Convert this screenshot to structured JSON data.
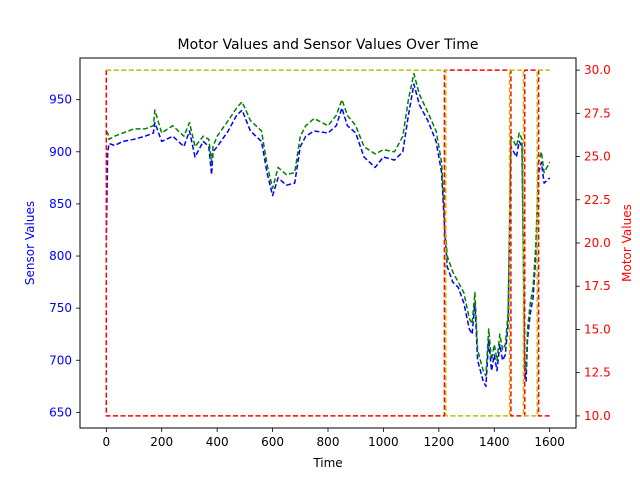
{
  "chart_data": {
    "type": "line",
    "title": "Motor Values and Sensor Values Over Time",
    "xlabel": "Time",
    "ylabel_left": "Sensor Values",
    "ylabel_right": "Motor Values",
    "xlim": [
      -95,
      1695
    ],
    "ylim_left": [
      635,
      990
    ],
    "ylim_right": [
      9.3,
      30.7
    ],
    "x_ticks": [
      0,
      200,
      400,
      600,
      800,
      1000,
      1200,
      1400,
      1600
    ],
    "y_left_ticks": [
      650,
      700,
      750,
      800,
      850,
      900,
      950
    ],
    "y_right_ticks": [
      10.0,
      12.5,
      15.0,
      17.5,
      20.0,
      22.5,
      25.0,
      27.5,
      30.0
    ],
    "y_right_tick_labels": [
      "10.0",
      "12.5",
      "15.0",
      "17.5",
      "20.0",
      "22.5",
      "25.0",
      "27.5",
      "30.0"
    ],
    "colors": {
      "sensor_blue": "#0000ff",
      "sensor_green": "#008000",
      "motor_red": "#ff0000",
      "motor_yellow": "#bfbf00",
      "left_axis_text": "#0000ff",
      "right_axis_text": "#ff0000"
    },
    "series": [
      {
        "axis": "left",
        "color": "#0000ff",
        "style": "dashed",
        "x": [
          0,
          5,
          10,
          30,
          60,
          100,
          140,
          170,
          175,
          200,
          240,
          280,
          300,
          320,
          350,
          370,
          380,
          385,
          400,
          440,
          470,
          490,
          520,
          560,
          580,
          600,
          620,
          650,
          680,
          700,
          720,
          750,
          800,
          830,
          850,
          870,
          900,
          930,
          970,
          1000,
          1040,
          1070,
          1090,
          1110,
          1130,
          1160,
          1190,
          1210,
          1220,
          1230,
          1250,
          1270,
          1290,
          1310,
          1320,
          1330,
          1340,
          1350,
          1360,
          1370,
          1380,
          1390,
          1400,
          1410,
          1420,
          1430,
          1440,
          1450,
          1460,
          1470,
          1480,
          1490,
          1500,
          1510,
          1515,
          1520,
          1530,
          1540,
          1550,
          1560,
          1570,
          1580,
          1600
        ],
        "y": [
          815,
          900,
          908,
          906,
          910,
          912,
          915,
          918,
          928,
          910,
          915,
          905,
          920,
          895,
          910,
          905,
          878,
          900,
          905,
          920,
          935,
          940,
          920,
          910,
          880,
          858,
          875,
          868,
          870,
          905,
          915,
          920,
          918,
          925,
          942,
          925,
          918,
          895,
          885,
          895,
          892,
          900,
          935,
          965,
          945,
          930,
          910,
          880,
          830,
          790,
          775,
          770,
          755,
          730,
          725,
          755,
          700,
          690,
          680,
          675,
          720,
          690,
          705,
          690,
          715,
          700,
          705,
          735,
          905,
          900,
          895,
          910,
          905,
          690,
          680,
          720,
          745,
          760,
          800,
          880,
          890,
          870,
          875
        ]
      },
      {
        "axis": "left",
        "color": "#008000",
        "style": "dashed",
        "x": [
          0,
          5,
          10,
          30,
          60,
          100,
          140,
          170,
          175,
          200,
          240,
          280,
          300,
          320,
          350,
          370,
          380,
          385,
          400,
          440,
          470,
          490,
          520,
          560,
          580,
          600,
          620,
          650,
          680,
          700,
          720,
          750,
          800,
          830,
          850,
          870,
          900,
          930,
          970,
          1000,
          1040,
          1070,
          1090,
          1110,
          1130,
          1160,
          1190,
          1210,
          1220,
          1230,
          1250,
          1270,
          1290,
          1310,
          1320,
          1330,
          1340,
          1350,
          1360,
          1370,
          1380,
          1390,
          1400,
          1410,
          1420,
          1430,
          1440,
          1450,
          1460,
          1470,
          1480,
          1490,
          1500,
          1510,
          1515,
          1520,
          1530,
          1540,
          1550,
          1560,
          1570,
          1580,
          1600
        ],
        "y": [
          920,
          918,
          912,
          915,
          918,
          922,
          922,
          925,
          940,
          918,
          925,
          915,
          928,
          905,
          915,
          912,
          890,
          905,
          915,
          930,
          942,
          948,
          930,
          920,
          888,
          865,
          885,
          878,
          880,
          915,
          925,
          932,
          925,
          935,
          950,
          935,
          925,
          905,
          898,
          902,
          900,
          915,
          950,
          975,
          955,
          938,
          920,
          890,
          840,
          800,
          785,
          775,
          765,
          740,
          735,
          765,
          710,
          700,
          690,
          685,
          730,
          700,
          715,
          700,
          725,
          710,
          715,
          745,
          915,
          910,
          905,
          918,
          912,
          700,
          690,
          730,
          755,
          770,
          810,
          890,
          900,
          880,
          890
        ]
      },
      {
        "axis": "right",
        "color": "#ff0000",
        "style": "dashed",
        "x": [
          0,
          0,
          1220,
          1220,
          1460,
          1460,
          1510,
          1510,
          1560,
          1560,
          1600
        ],
        "y": [
          30,
          10,
          10,
          30,
          30,
          10,
          10,
          30,
          30,
          10,
          10
        ]
      },
      {
        "axis": "right",
        "color": "#bfbf00",
        "style": "dashed",
        "x": [
          0,
          1225,
          1225,
          1455,
          1455,
          1505,
          1505,
          1555,
          1555,
          1600
        ],
        "y": [
          30,
          30,
          10,
          10,
          30,
          30,
          10,
          10,
          30,
          30
        ]
      }
    ]
  }
}
